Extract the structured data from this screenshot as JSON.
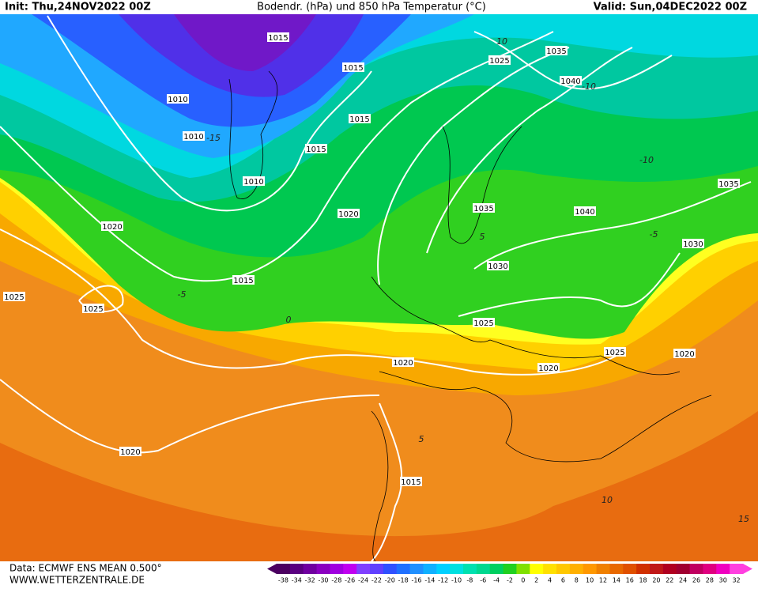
{
  "header": {
    "init": "Init: Thu,24NOV2022 00Z",
    "title": "Bodendr. (hPa) und 850 hPa Temperatur (°C)",
    "valid": "Valid: Sun,04DEC2022 00Z"
  },
  "isobar_labels": [
    "1015",
    "1015",
    "1010",
    "1010",
    "1015",
    "1015",
    "1010",
    "1020",
    "1020",
    "1015",
    "1025",
    "1025",
    "1020",
    "1020",
    "1015",
    "1030",
    "1025",
    "1035",
    "1040",
    "1025",
    "1035",
    "1040",
    "1035",
    "1030",
    "1025",
    "1020",
    "1020"
  ],
  "temperature_labels": [
    10,
    -10,
    -10,
    -5,
    5,
    0,
    5,
    10,
    15,
    -5,
    -15
  ],
  "legend": {
    "labels": [
      -38,
      -34,
      -32,
      -30,
      -28,
      -26,
      -24,
      -22,
      -20,
      -18,
      -16,
      -14,
      -12,
      -10,
      -8,
      -6,
      -4,
      -2,
      0,
      2,
      4,
      6,
      8,
      10,
      12,
      14,
      16,
      18,
      20,
      22,
      24,
      26,
      28,
      30,
      32
    ],
    "colors": [
      "#4b0060",
      "#5a0080",
      "#7000a0",
      "#8a00c0",
      "#a000e0",
      "#c000f0",
      "#8040ff",
      "#6040ff",
      "#3050ff",
      "#2070ff",
      "#2090ff",
      "#10b0ff",
      "#00d0ff",
      "#00e0e0",
      "#00e0b0",
      "#00d890",
      "#00d060",
      "#20d020",
      "#80e000",
      "#ffff00",
      "#ffe000",
      "#ffc800",
      "#ffb000",
      "#ff9800",
      "#f08000",
      "#e86800",
      "#e05000",
      "#d03000",
      "#c01818",
      "#b00020",
      "#a00030",
      "#c00060",
      "#e00080",
      "#f000c0",
      "#ff40e0"
    ]
  },
  "footer": {
    "source": "Data: ECMWF ENS MEAN 0.500°",
    "site": "WWW.WETTERZENTRALE.DE"
  }
}
